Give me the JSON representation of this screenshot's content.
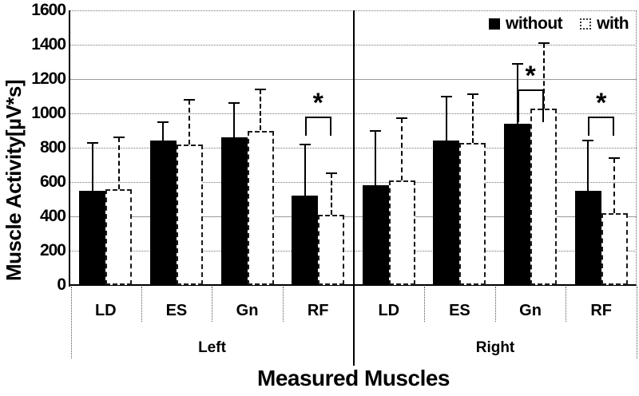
{
  "chart_data": {
    "type": "bar",
    "xlabel": "Measured Muscles",
    "ylabel": "Muscle Activity[µV*s]",
    "ylim": [
      0,
      1600
    ],
    "yticks": [
      0,
      200,
      400,
      600,
      800,
      1000,
      1200,
      1400,
      1600
    ],
    "solid_gridlines": [
      400,
      1200
    ],
    "grid": "horizontal",
    "legend_position": "top-right",
    "legend": {
      "items": [
        {
          "label": "without",
          "fill": "#000000"
        },
        {
          "label": "with",
          "fill": "#ffffff"
        }
      ]
    },
    "groups": [
      {
        "label": "Left",
        "categories": [
          "LD",
          "ES",
          "Gn",
          "RF"
        ]
      },
      {
        "label": "Right",
        "categories": [
          "LD",
          "ES",
          "Gn",
          "RF"
        ]
      }
    ],
    "series": [
      {
        "name": "without",
        "values": [
          550,
          840,
          860,
          520,
          580,
          840,
          940,
          550
        ],
        "error_top": [
          830,
          950,
          1060,
          820,
          900,
          1100,
          1290,
          840
        ]
      },
      {
        "name": "with",
        "values": [
          560,
          820,
          900,
          410,
          610,
          830,
          1030,
          420
        ],
        "error_top": [
          860,
          1080,
          1140,
          650,
          970,
          1110,
          1410,
          740
        ]
      }
    ],
    "significance": [
      {
        "group": "Left",
        "category": "RF",
        "cat_index": 3,
        "line": 980,
        "legs_to": 870,
        "symbol": "*"
      },
      {
        "group": "Right",
        "category": "Gn",
        "cat_index": 6,
        "line": 1140,
        "legs_to": 950,
        "symbol": "*"
      },
      {
        "group": "Right",
        "category": "RF",
        "cat_index": 7,
        "line": 980,
        "legs_to": 870,
        "symbol": "*"
      }
    ]
  }
}
